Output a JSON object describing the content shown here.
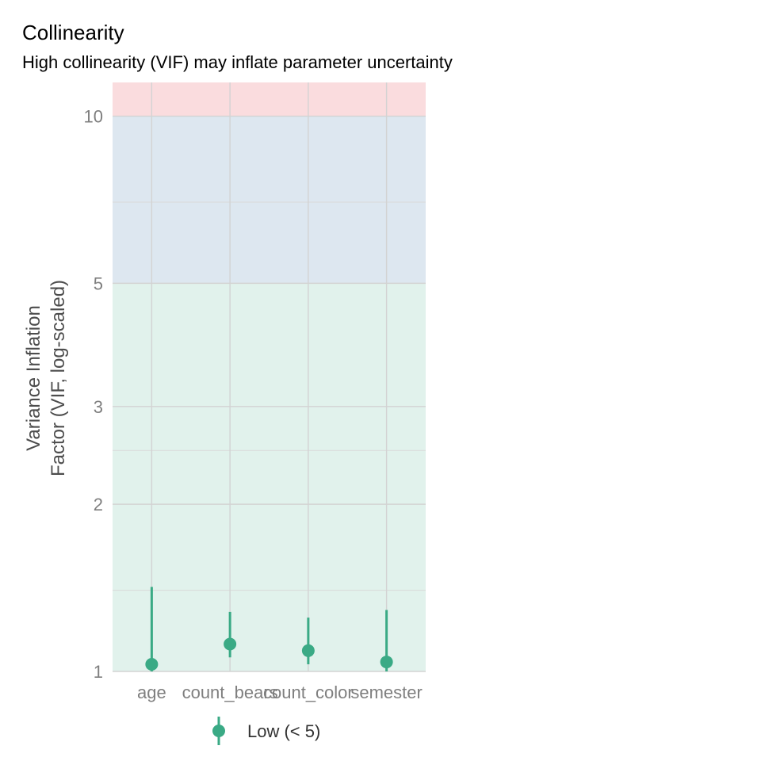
{
  "chart_data": {
    "type": "scatter",
    "title": "Collinearity",
    "subtitle": "High collinearity (VIF) may inflate parameter uncertainty",
    "ylabel_lines": [
      "Variance Inflation",
      "Factor (VIF, log-scaled)"
    ],
    "xlabel": "",
    "y_scale": "log",
    "ylim": [
      1,
      11.5
    ],
    "y_ticks": [
      1,
      2,
      3,
      5,
      10
    ],
    "y_tick_labels": [
      "1",
      "2",
      "3",
      "5",
      "10"
    ],
    "y_minor_ticks": [
      1.4,
      2.5,
      7
    ],
    "categories": [
      "age",
      "count_bears",
      "count_color",
      "semester"
    ],
    "series": [
      {
        "name": "Low (< 5)",
        "color": "#3aaa85",
        "points": [
          {
            "x": "age",
            "y": 1.03,
            "ci_low": 1.0,
            "ci_high": 1.42
          },
          {
            "x": "count_bears",
            "y": 1.12,
            "ci_low": 1.06,
            "ci_high": 1.28
          },
          {
            "x": "count_color",
            "y": 1.09,
            "ci_low": 1.03,
            "ci_high": 1.25
          },
          {
            "x": "semester",
            "y": 1.04,
            "ci_low": 1.0,
            "ci_high": 1.29
          }
        ]
      }
    ],
    "bands": [
      {
        "from": 1,
        "to": 5,
        "color": "#e1f2ec"
      },
      {
        "from": 5,
        "to": 10,
        "color": "#dde7f0"
      },
      {
        "from": 10,
        "to": 11.5,
        "color": "#fadcde"
      }
    ],
    "grid": true,
    "legend_position": "bottom"
  }
}
